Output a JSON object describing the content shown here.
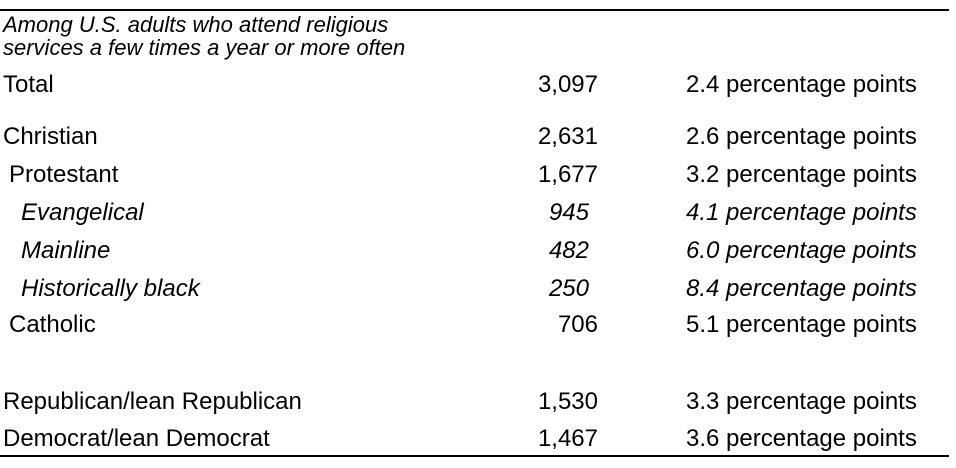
{
  "table": {
    "header": {
      "line1": "Among U.S. adults who attend religious",
      "line2": "services a few times a year or more often"
    },
    "rows": [
      {
        "label": "Total",
        "n": "3,097",
        "moe": "2.4 percentage points"
      },
      {
        "label": "Christian",
        "n": "2,631",
        "moe": "2.6 percentage points"
      },
      {
        "label": "Protestant",
        "n": "1,677",
        "moe": "3.2 percentage points"
      },
      {
        "label": "Evangelical",
        "n": "945",
        "moe": "4.1 percentage points"
      },
      {
        "label": "Mainline",
        "n": "482",
        "moe": "6.0 percentage points"
      },
      {
        "label": "Historically black",
        "n": "250",
        "moe": "8.4 percentage points"
      },
      {
        "label": "Catholic",
        "n": "706",
        "moe": "5.1 percentage points"
      },
      {
        "label": "Republican/lean Republican",
        "n": "1,530",
        "moe": "3.3 percentage points"
      },
      {
        "label": "Democrat/lean Democrat",
        "n": "1,467",
        "moe": "3.6 percentage points"
      }
    ]
  }
}
